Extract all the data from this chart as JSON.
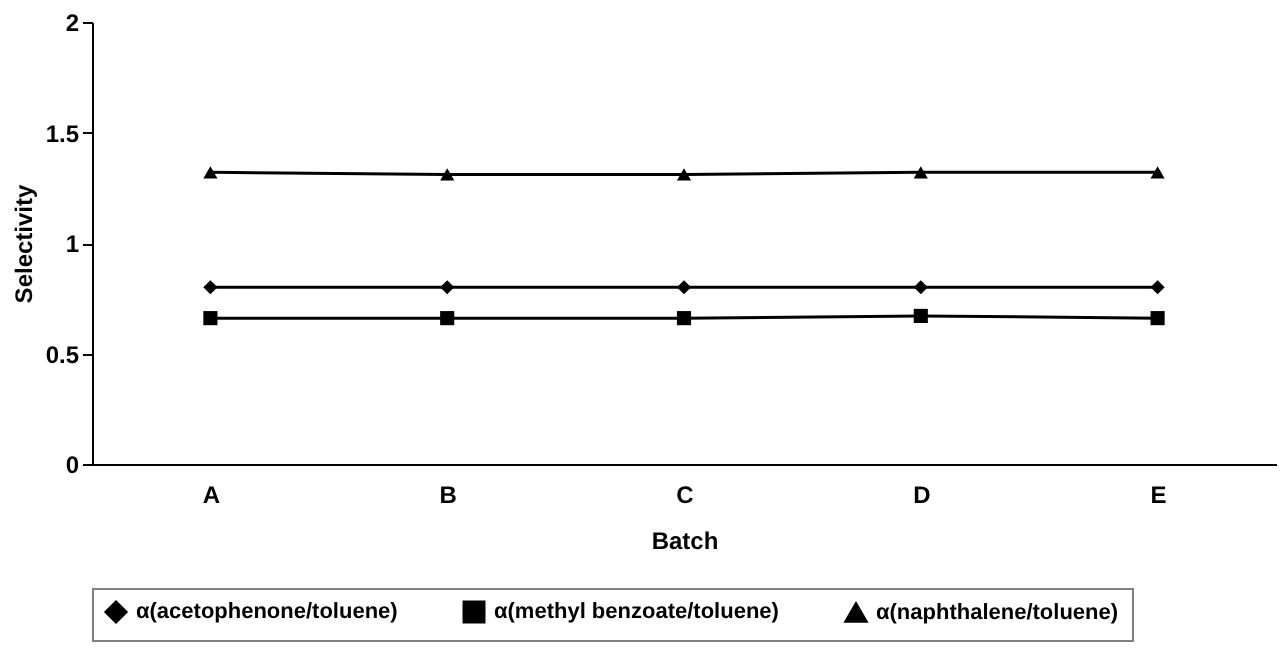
{
  "chart_data": {
    "type": "line",
    "xlabel": "Batch",
    "ylabel": "Selectivity",
    "categories": [
      "A",
      "B",
      "C",
      "D",
      "E"
    ],
    "series": [
      {
        "name": "α(acetophenone/toluene)",
        "color": "#000000",
        "marker": "diamond",
        "values": [
          0.8,
          0.8,
          0.8,
          0.8,
          0.8
        ]
      },
      {
        "name": "α(methyl benzoate/toluene)",
        "color": "#000000",
        "marker": "square",
        "values": [
          0.66,
          0.66,
          0.66,
          0.67,
          0.66
        ]
      },
      {
        "name": "α(naphthalene/toluene)",
        "color": "#000000",
        "marker": "triangle",
        "values": [
          1.32,
          1.31,
          1.31,
          1.32,
          1.32
        ]
      }
    ],
    "ylim": [
      0,
      2
    ],
    "yticks": [
      0,
      0.5,
      1,
      1.5,
      2
    ],
    "grid": false,
    "legend": "bottom",
    "line_style": "solid"
  }
}
